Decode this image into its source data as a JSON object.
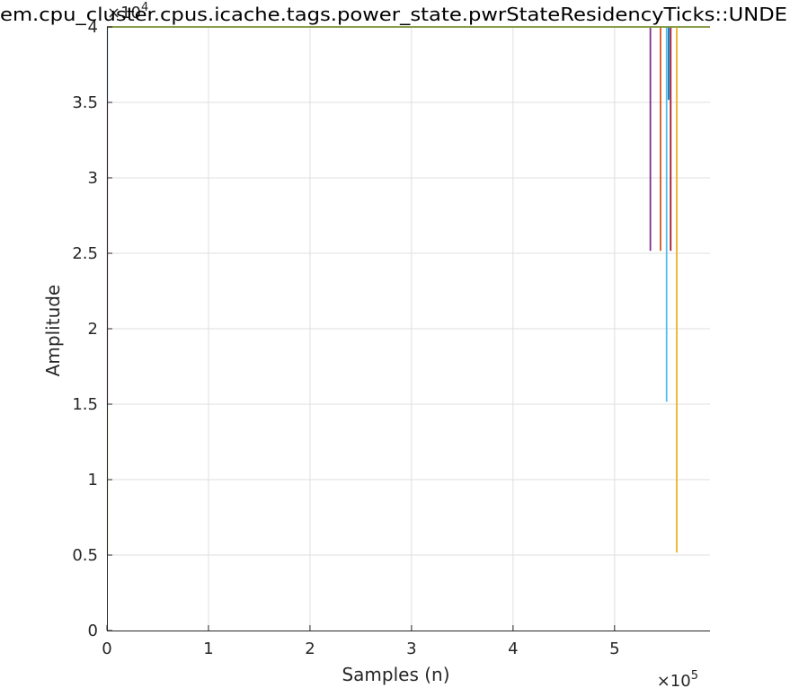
{
  "chart_data": {
    "type": "line",
    "title": "em.cpu_cluster.cpus.icache.tags.power_state.pwrStateResidencyTicks::UNDE",
    "xlabel": "Samples (n)",
    "ylabel": "Amplitude",
    "xlim": [
      0,
      594000
    ],
    "ylim": [
      0,
      40000
    ],
    "x_ticks": [
      0,
      100000,
      200000,
      300000,
      400000,
      500000
    ],
    "x_tick_labels": [
      "0",
      "1",
      "2",
      "3",
      "4",
      "5"
    ],
    "y_ticks": [
      0,
      5000,
      10000,
      15000,
      20000,
      25000,
      30000,
      35000,
      40000
    ],
    "y_tick_labels": [
      "0",
      "0.5",
      "1",
      "1.5",
      "2",
      "2.5",
      "3",
      "3.5",
      "4"
    ],
    "x_exponent": {
      "base": "×10",
      "power": "5"
    },
    "y_exponent": {
      "base": "×10",
      "power": "4"
    },
    "grid": true,
    "series": [
      {
        "color": "#7e2f8e",
        "x": [
          0,
          535000,
          535000,
          535500,
          535500,
          594000
        ],
        "y": [
          40000,
          40000,
          25200,
          25200,
          40000,
          40000
        ]
      },
      {
        "color": "#d95319",
        "x": [
          0,
          545000,
          545000,
          545500,
          545500,
          594000
        ],
        "y": [
          40000,
          40000,
          25200,
          25200,
          40000,
          40000
        ]
      },
      {
        "color": "#4dbeee",
        "x": [
          0,
          551000,
          551000,
          551500,
          551500,
          594000
        ],
        "y": [
          40000,
          40000,
          15200,
          15200,
          40000,
          40000
        ]
      },
      {
        "color": "#0072bd",
        "x": [
          0,
          553000,
          553000,
          553500,
          553500,
          594000
        ],
        "y": [
          40000,
          40000,
          35200,
          35200,
          40000,
          40000
        ]
      },
      {
        "color": "#a2142f",
        "x": [
          0,
          555000,
          555000,
          555500,
          555500,
          594000
        ],
        "y": [
          40000,
          40000,
          25200,
          25200,
          40000,
          40000
        ]
      },
      {
        "color": "#edb120",
        "x": [
          0,
          561000,
          561000,
          561500,
          561500,
          594000
        ],
        "y": [
          40000,
          40000,
          5200,
          5200,
          40000,
          40000
        ]
      },
      {
        "color": "#77ac30",
        "x": [
          0,
          594000
        ],
        "y": [
          40000,
          40000
        ]
      }
    ],
    "left_edge_segments": [
      {
        "color": "#77ac30",
        "y": [
          5000,
          15000
        ]
      },
      {
        "color": "#a2142f",
        "y": [
          15000,
          35000
        ]
      },
      {
        "color": "#0072bd",
        "y": [
          35000,
          40000
        ]
      }
    ]
  }
}
